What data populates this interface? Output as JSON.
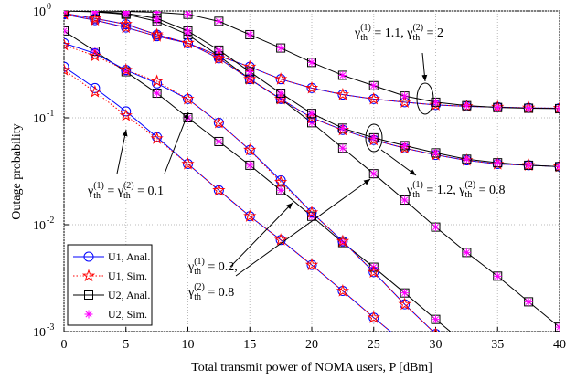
{
  "chart_data": {
    "type": "line",
    "x_label": "Total transmit power of NOMA users, P [dBm]",
    "y_label": "Outage probability",
    "log_y": true,
    "grid": true,
    "xlim": [
      0,
      40
    ],
    "xticks": [
      0,
      5,
      10,
      15,
      20,
      25,
      30,
      35,
      40
    ],
    "ylim": [
      0.001,
      1
    ],
    "yticks": [
      {
        "value": 0.001,
        "label": "10",
        "exponent": "-3"
      },
      {
        "value": 0.01,
        "label": "10",
        "exponent": "-2"
      },
      {
        "value": 0.1,
        "label": "10",
        "exponent": "-1"
      },
      {
        "value": 1,
        "label": "10",
        "exponent": "0"
      }
    ],
    "x": [
      0,
      2.5,
      5,
      7.5,
      10,
      12.5,
      15,
      17.5,
      20,
      22.5,
      25,
      27.5,
      30,
      32.5,
      35,
      37.5,
      40
    ],
    "series": [
      {
        "name": "U1, Anal.",
        "color": "#0000ff",
        "marker": "circle",
        "line": "solid",
        "values": [
          0.3,
          0.19,
          0.115,
          0.066,
          0.037,
          0.021,
          0.012,
          0.0072,
          0.0042,
          0.0024,
          0.00135,
          0.00078,
          null,
          null,
          null,
          null,
          null
        ]
      },
      {
        "name": "U1, Sim.",
        "color": "#ff0000",
        "marker": "star",
        "line": "dotted",
        "values": [
          0.28,
          0.175,
          0.105,
          0.064,
          0.037,
          0.021,
          0.012,
          0.0072,
          0.0042,
          0.0024,
          0.00135,
          0.00078,
          null,
          null,
          null,
          null,
          null
        ]
      },
      {
        "name": "U2, Anal.",
        "color": "#000000",
        "marker": "square",
        "line": "solid",
        "values": [
          0.65,
          0.42,
          0.27,
          0.17,
          0.1,
          0.06,
          0.036,
          0.021,
          0.012,
          0.0068,
          0.004,
          0.0023,
          0.0013,
          0.00075,
          null,
          null,
          null
        ]
      },
      {
        "name": "U2, Sim.",
        "color": "#ff00ff",
        "marker": "asterisk",
        "line": "none",
        "values": [
          0.65,
          0.42,
          0.27,
          0.17,
          0.1,
          0.06,
          0.036,
          0.021,
          0.012,
          0.0068,
          0.004,
          0.0023,
          0.0013,
          0.00075,
          null,
          null,
          null
        ]
      },
      {
        "color": "#0000ff",
        "marker": "circle",
        "line": "solid",
        "values": [
          0.5,
          0.4,
          0.28,
          0.21,
          0.15,
          0.09,
          0.05,
          0.026,
          0.013,
          0.007,
          0.0036,
          0.0018,
          0.00095,
          null,
          null,
          null,
          null
        ]
      },
      {
        "color": "#ff0000",
        "marker": "star",
        "line": "dotted",
        "values": [
          0.48,
          0.38,
          0.28,
          0.22,
          0.15,
          0.09,
          0.05,
          0.025,
          0.013,
          0.007,
          0.0036,
          0.0018,
          0.00095,
          null,
          null,
          null,
          null
        ]
      },
      {
        "color": "#000000",
        "marker": "square",
        "line": "solid",
        "values": [
          1,
          0.98,
          0.93,
          0.8,
          0.6,
          0.38,
          0.23,
          0.15,
          0.09,
          0.052,
          0.03,
          0.017,
          0.0095,
          0.0055,
          0.0033,
          0.0019,
          0.0011
        ]
      },
      {
        "color": "#ff00ff",
        "marker": "asterisk",
        "line": "none",
        "values": [
          1,
          0.98,
          0.93,
          0.8,
          0.6,
          0.38,
          0.23,
          0.15,
          0.09,
          0.052,
          0.03,
          0.017,
          0.0095,
          0.0055,
          0.0033,
          0.0019,
          0.0011
        ]
      },
      {
        "color": "#0000ff",
        "marker": "circle",
        "line": "solid",
        "values": [
          0.93,
          0.82,
          0.7,
          0.58,
          0.5,
          0.38,
          0.3,
          0.23,
          0.19,
          0.165,
          0.15,
          0.14,
          0.132,
          0.128,
          0.126,
          0.124,
          0.123
        ]
      },
      {
        "color": "#ff0000",
        "marker": "star",
        "line": "dotted",
        "values": [
          0.93,
          0.82,
          0.7,
          0.58,
          0.5,
          0.38,
          0.3,
          0.23,
          0.19,
          0.165,
          0.15,
          0.14,
          0.132,
          0.128,
          0.126,
          0.124,
          0.123
        ]
      },
      {
        "color": "#000000",
        "marker": "square",
        "line": "solid",
        "values": [
          1,
          1,
          0.99,
          0.97,
          0.93,
          0.8,
          0.6,
          0.45,
          0.33,
          0.25,
          0.2,
          0.16,
          0.14,
          0.13,
          0.125,
          0.123,
          0.122
        ]
      },
      {
        "color": "#ff00ff",
        "marker": "asterisk",
        "line": "none",
        "values": [
          1,
          1,
          0.99,
          0.97,
          0.93,
          0.8,
          0.6,
          0.45,
          0.33,
          0.25,
          0.2,
          0.16,
          0.14,
          0.13,
          0.125,
          0.123,
          0.122
        ]
      },
      {
        "color": "#0000ff",
        "marker": "circle",
        "line": "solid",
        "values": [
          0.95,
          0.85,
          0.75,
          0.6,
          0.5,
          0.36,
          0.23,
          0.15,
          0.1,
          0.077,
          0.062,
          0.052,
          0.045,
          0.04,
          0.037,
          0.036,
          0.035
        ]
      },
      {
        "color": "#ff0000",
        "marker": "star",
        "line": "dotted",
        "values": [
          0.95,
          0.85,
          0.75,
          0.6,
          0.5,
          0.36,
          0.23,
          0.15,
          0.1,
          0.077,
          0.062,
          0.052,
          0.045,
          0.04,
          0.037,
          0.036,
          0.035
        ]
      },
      {
        "color": "#000000",
        "marker": "square",
        "line": "solid",
        "values": [
          1,
          0.99,
          0.95,
          0.85,
          0.65,
          0.43,
          0.27,
          0.17,
          0.11,
          0.08,
          0.065,
          0.055,
          0.047,
          0.041,
          0.038,
          0.036,
          0.035
        ]
      },
      {
        "color": "#ff00ff",
        "marker": "asterisk",
        "line": "none",
        "values": [
          1,
          0.99,
          0.95,
          0.85,
          0.65,
          0.43,
          0.27,
          0.17,
          0.11,
          0.08,
          0.065,
          0.055,
          0.047,
          0.041,
          0.038,
          0.036,
          0.035
        ]
      }
    ],
    "annotations": [
      {
        "lines": [
          [
            {
              "text": "γ"
            },
            {
              "sup": "(1)"
            },
            {
              "sub": "th"
            },
            {
              "text": " = 1.1, "
            },
            {
              "text": "γ"
            },
            {
              "sup": "(2)"
            },
            {
              "sub": "th"
            },
            {
              "text": " = 2"
            }
          ]
        ]
      },
      {
        "lines": [
          [
            {
              "text": "γ"
            },
            {
              "sup": "(1)"
            },
            {
              "sub": "th"
            },
            {
              "text": " = 1.2, "
            },
            {
              "text": "γ"
            },
            {
              "sup": "(2)"
            },
            {
              "sub": "th"
            },
            {
              "text": " = 0.8"
            }
          ]
        ]
      },
      {
        "lines": [
          [
            {
              "text": "γ"
            },
            {
              "sup": "(1)"
            },
            {
              "sub": "th"
            },
            {
              "text": " = "
            },
            {
              "text": "γ"
            },
            {
              "sup": "(2)"
            },
            {
              "sub": "th"
            },
            {
              "text": " = 0.1"
            }
          ]
        ]
      },
      {
        "lines": [
          [
            {
              "text": "γ"
            },
            {
              "sup": "(1)"
            },
            {
              "sub": "th"
            },
            {
              "text": " = 0.2,"
            }
          ],
          [
            {
              "text": "γ"
            },
            {
              "sup": "(2)"
            },
            {
              "sub": "th"
            },
            {
              "text": " = 0.8"
            }
          ]
        ]
      }
    ]
  }
}
